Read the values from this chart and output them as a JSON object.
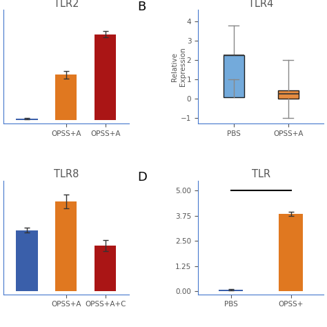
{
  "background": "#ffffff",
  "TLR2": {
    "title": "TLR2",
    "values": [
      0.05,
      1.85,
      3.5
    ],
    "errors": [
      0.02,
      0.15,
      0.12
    ],
    "colors": [
      "#3a5faa",
      "#e07820",
      "#aa1515"
    ],
    "xtick_labels": [
      "OPSS+A",
      "OPSS+A"
    ],
    "xtick_pos": [
      1,
      2
    ],
    "ylim": [
      -0.15,
      4.5
    ],
    "yticks": [
      0,
      1,
      2,
      3,
      4
    ]
  },
  "TLR4": {
    "title": "TLR4",
    "panel_letter": "B",
    "ylabel": "Relative\nExpression",
    "categories": [
      "PBS",
      "OPSS+A"
    ],
    "box_stats": [
      {
        "med": 2.25,
        "q1": 0.05,
        "q3": 2.25,
        "whislo": 1.0,
        "whishi": 3.8,
        "fliers": []
      },
      {
        "med": 0.25,
        "q1": 0.0,
        "q3": 0.42,
        "whislo": -1.0,
        "whishi": 2.0,
        "fliers": []
      }
    ],
    "colors": [
      "#5b9bd5",
      "#e07820"
    ],
    "ylim": [
      -1.3,
      4.6
    ],
    "yticks": [
      -1,
      0,
      1,
      2,
      3,
      4
    ]
  },
  "TLR8": {
    "title": "TLR8",
    "panel_letter": "D",
    "values": [
      3.2,
      4.7,
      2.4
    ],
    "errors": [
      0.12,
      0.35,
      0.28
    ],
    "colors": [
      "#3a5faa",
      "#e07820",
      "#aa1515"
    ],
    "xtick_labels": [
      "OPSS+A",
      "OPSS+A+C"
    ],
    "xtick_pos": [
      1,
      2
    ],
    "ylim": [
      -0.15,
      5.8
    ],
    "yticks": [
      0,
      1,
      2,
      3,
      4,
      5
    ]
  },
  "TLR9": {
    "title": "TLR",
    "values": [
      0.08,
      3.85
    ],
    "errors": [
      0.04,
      0.1
    ],
    "colors": [
      "#3a5faa",
      "#e07820"
    ],
    "xtick_labels": [
      "PBS",
      "OPSS+"
    ],
    "xtick_pos": [
      0,
      1
    ],
    "ylim": [
      -0.15,
      5.5
    ],
    "yticks": [
      0,
      1.25,
      2.5,
      3.75,
      5
    ],
    "sig_line_y": 5.0,
    "sig_x0": 0,
    "sig_x1": 1
  },
  "spine_color": "#4477cc",
  "text_color": "#555555",
  "label_color": "#333333"
}
